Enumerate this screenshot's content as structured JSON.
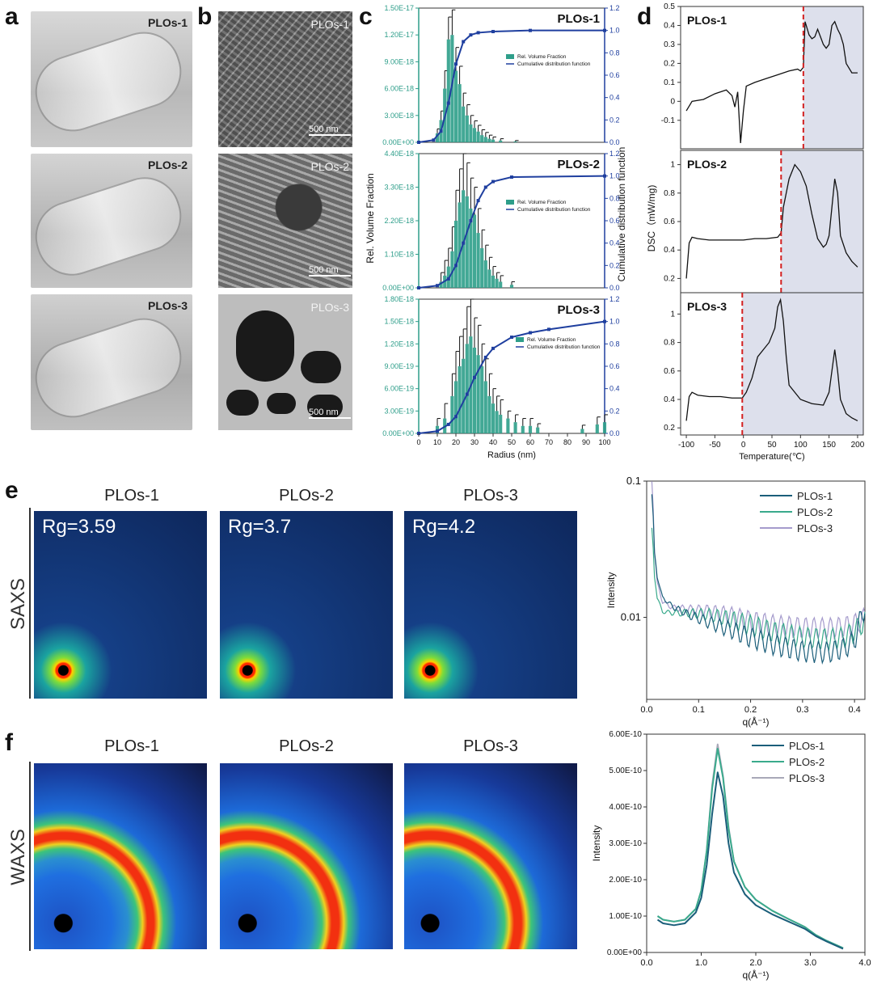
{
  "panel_labels": {
    "a": "a",
    "b": "b",
    "c": "c",
    "d": "d",
    "e": "e",
    "f": "f"
  },
  "panel_a": {
    "tags": [
      "PLOs-1",
      "PLOs-2",
      "PLOs-3"
    ]
  },
  "panel_b": {
    "tags": [
      "PLOs-1",
      "PLOs-2",
      "PLOs-3"
    ],
    "scale_bar": "500 nm"
  },
  "panel_e": {
    "titles": [
      "PLOs-1",
      "PLOs-2",
      "PLOs-3"
    ],
    "row_label": "SAXS",
    "rg": [
      "Rg=3.59",
      "Rg=3.7",
      "Rg=4.2"
    ]
  },
  "panel_f": {
    "titles": [
      "PLOs-1",
      "PLOs-2",
      "PLOs-3"
    ],
    "row_label": "WAXS"
  },
  "colors": {
    "teal": "#2e9e8a",
    "blue": "#1f3f9f",
    "red": "#d32020",
    "plos1": "#1b5e7a",
    "plos2": "#3aaa8c",
    "plos3": "#a59bcc",
    "shade": "#dde0ec"
  },
  "chart_data": [
    {
      "id": "c",
      "type": "bar",
      "xlabel": "Radius (nm)",
      "ylabel": "Rel. Volume Fraction",
      "ylabel_right": "Cumulative distribution function",
      "legend": [
        "Rel. Volume Fraction",
        "Cumulative distribution function"
      ],
      "xlim": [
        0,
        100
      ],
      "xticks": [
        "0",
        "10",
        "20",
        "30",
        "40",
        "50",
        "60",
        "70",
        "80",
        "90",
        "100"
      ],
      "right_ticks": [
        "0.0",
        "0.2",
        "0.4",
        "0.6",
        "0.8",
        "1.0",
        "1.2"
      ],
      "subplots": [
        {
          "title": "PLOs-1",
          "ylim": [
            0,
            1.5e-17
          ],
          "yticks": [
            "0.00E+00",
            "3.00E-18",
            "6.00E-18",
            "9.00E-18",
            "1.20E-17",
            "1.50E-17"
          ],
          "x": [
            10,
            12,
            14,
            16,
            18,
            20,
            22,
            24,
            26,
            28,
            30,
            32,
            34,
            36,
            38,
            40,
            44,
            52
          ],
          "values": [
            1e-18,
            2.5e-18,
            6e-18,
            1.15e-17,
            1.2e-17,
            8e-18,
            6.5e-18,
            4e-18,
            3e-18,
            2e-18,
            1.6e-18,
            1.2e-18,
            8e-19,
            6e-19,
            4e-19,
            3e-19,
            2e-19,
            1e-19
          ],
          "errors": [
            5e-19,
            1e-18,
            2e-18,
            2.5e-18,
            2.8e-18,
            2.6e-18,
            2e-18,
            1.5e-18,
            1.2e-18,
            1e-18,
            8e-19,
            7e-19,
            6e-19,
            5e-19,
            4e-19,
            3e-19,
            2e-19,
            1e-19
          ],
          "cdf_x": [
            0,
            8,
            12,
            16,
            20,
            24,
            28,
            32,
            40,
            60,
            100
          ],
          "cdf": [
            0,
            0.02,
            0.1,
            0.35,
            0.7,
            0.9,
            0.96,
            0.98,
            0.99,
            1.0,
            1.0
          ]
        },
        {
          "title": "PLOs-2",
          "ylim": [
            0,
            4.4e-18
          ],
          "yticks": [
            "0.00E+00",
            "1.10E-18",
            "2.20E-18",
            "3.30E-18",
            "4.40E-18"
          ],
          "x": [
            12,
            14,
            16,
            18,
            20,
            22,
            24,
            26,
            28,
            30,
            32,
            34,
            36,
            38,
            40,
            42,
            44,
            50
          ],
          "values": [
            2e-19,
            4e-19,
            7e-19,
            1.2e-18,
            2.2e-18,
            2.8e-18,
            3.2e-18,
            3e-18,
            2.6e-18,
            2.4e-18,
            1.8e-18,
            1.3e-18,
            9e-19,
            6e-19,
            4e-19,
            3e-19,
            2e-19,
            1e-19
          ],
          "errors": [
            3e-19,
            5e-19,
            6e-19,
            8e-19,
            1e-18,
            1.1e-18,
            1.2e-18,
            1.1e-18,
            1e-18,
            9e-19,
            8e-19,
            6e-19,
            5e-19,
            4e-19,
            3e-19,
            2e-19,
            2e-19,
            1e-19
          ],
          "cdf_x": [
            0,
            10,
            16,
            20,
            24,
            28,
            32,
            36,
            40,
            50,
            100
          ],
          "cdf": [
            0,
            0.02,
            0.08,
            0.2,
            0.4,
            0.6,
            0.78,
            0.9,
            0.95,
            0.99,
            1.0
          ]
        },
        {
          "title": "PLOs-3",
          "ylim": [
            0,
            1.8e-18
          ],
          "yticks": [
            "0.00E+00",
            "3.00E-19",
            "6.00E-19",
            "9.00E-19",
            "1.20E-18",
            "1.50E-18",
            "1.80E-18"
          ],
          "x": [
            10,
            14,
            18,
            20,
            22,
            24,
            26,
            28,
            30,
            32,
            34,
            36,
            38,
            40,
            42,
            44,
            48,
            52,
            56,
            60,
            64,
            88,
            96,
            100
          ],
          "values": [
            1e-19,
            2e-19,
            5e-19,
            7e-19,
            9e-19,
            1e-18,
            1.2e-18,
            1.3e-18,
            1.15e-18,
            1.05e-18,
            9e-19,
            7e-19,
            5e-19,
            4e-19,
            3e-19,
            2.5e-19,
            2e-19,
            1.5e-19,
            1e-19,
            1e-19,
            8e-20,
            6e-20,
            1.2e-19,
            1.5e-19
          ],
          "errors": [
            1e-19,
            2e-19,
            3e-19,
            4e-19,
            4e-19,
            4e-19,
            5e-19,
            5e-19,
            4e-19,
            4e-19,
            3e-19,
            3e-19,
            3e-19,
            2e-19,
            2e-19,
            2e-19,
            1e-19,
            1e-19,
            1e-19,
            1e-19,
            5e-20,
            5e-20,
            1e-19,
            1e-19
          ],
          "cdf_x": [
            0,
            10,
            16,
            20,
            26,
            30,
            36,
            40,
            50,
            60,
            70,
            100
          ],
          "cdf": [
            0,
            0.02,
            0.08,
            0.15,
            0.35,
            0.5,
            0.68,
            0.76,
            0.86,
            0.9,
            0.93,
            1.0
          ]
        }
      ]
    },
    {
      "id": "d",
      "type": "line",
      "xlabel": "Temperature(℃)",
      "ylabel": "DSC（mW/mg)",
      "xlim": [
        -110,
        210
      ],
      "xticks": [
        "-100",
        "-50",
        "0",
        "50",
        "100",
        "150",
        "200"
      ],
      "subplots": [
        {
          "title": "PLOs-1",
          "ylim": [
            -0.25,
            0.5
          ],
          "yticks": [
            "-0.1",
            "0",
            "0.1",
            "0.2",
            "0.3",
            "0.4",
            "0.5"
          ],
          "glass": 105,
          "x": [
            -100,
            -90,
            -70,
            -50,
            -30,
            -20,
            -15,
            -10,
            -5,
            0,
            5,
            20,
            40,
            60,
            80,
            95,
            100,
            105,
            108,
            110,
            115,
            120,
            125,
            130,
            140,
            145,
            150,
            155,
            160,
            165,
            170,
            175,
            180,
            190,
            200
          ],
          "y": [
            -0.05,
            0.0,
            0.01,
            0.04,
            0.06,
            0.03,
            -0.03,
            0.05,
            -0.22,
            -0.05,
            0.08,
            0.1,
            0.12,
            0.14,
            0.16,
            0.17,
            0.16,
            0.18,
            0.42,
            0.4,
            0.35,
            0.33,
            0.34,
            0.38,
            0.3,
            0.28,
            0.3,
            0.4,
            0.42,
            0.38,
            0.35,
            0.3,
            0.2,
            0.15,
            0.15
          ]
        },
        {
          "title": "PLOs-2",
          "ylim": [
            0.1,
            1.1
          ],
          "yticks": [
            "0.2",
            "0.4",
            "0.6",
            "0.8",
            "1"
          ],
          "glass": 66,
          "x": [
            -100,
            -95,
            -90,
            -80,
            -60,
            -40,
            -20,
            0,
            20,
            40,
            60,
            66,
            70,
            80,
            90,
            100,
            110,
            120,
            130,
            140,
            145,
            150,
            155,
            160,
            165,
            170,
            180,
            190,
            200
          ],
          "y": [
            0.2,
            0.45,
            0.49,
            0.48,
            0.47,
            0.47,
            0.47,
            0.47,
            0.48,
            0.48,
            0.49,
            0.52,
            0.7,
            0.9,
            1.0,
            0.95,
            0.85,
            0.65,
            0.48,
            0.42,
            0.44,
            0.5,
            0.7,
            0.9,
            0.8,
            0.5,
            0.38,
            0.32,
            0.28
          ]
        },
        {
          "title": "PLOs-3",
          "ylim": [
            0.15,
            1.15
          ],
          "yticks": [
            "0.2",
            "0.4",
            "0.6",
            "0.8",
            "1"
          ],
          "glass": -2,
          "x": [
            -100,
            -95,
            -90,
            -80,
            -60,
            -40,
            -20,
            -2,
            5,
            15,
            25,
            35,
            45,
            55,
            60,
            65,
            70,
            75,
            80,
            100,
            120,
            140,
            150,
            155,
            160,
            165,
            170,
            180,
            190,
            200
          ],
          "y": [
            0.25,
            0.42,
            0.45,
            0.43,
            0.42,
            0.42,
            0.41,
            0.41,
            0.45,
            0.55,
            0.7,
            0.75,
            0.8,
            0.9,
            1.05,
            1.1,
            0.95,
            0.7,
            0.5,
            0.4,
            0.37,
            0.36,
            0.45,
            0.6,
            0.75,
            0.6,
            0.4,
            0.3,
            0.27,
            0.25
          ]
        }
      ]
    },
    {
      "id": "e",
      "type": "line",
      "xlabel": "q(Å⁻¹)",
      "ylabel": "Intensity",
      "yscale": "log",
      "xlim": [
        0,
        0.42
      ],
      "ylim": [
        0.0025,
        0.1
      ],
      "xticks": [
        "0.0",
        "0.1",
        "0.2",
        "0.3",
        "0.4"
      ],
      "yticks": [
        "0.01",
        "0.1"
      ],
      "series": [
        {
          "name": "PLOs-1",
          "x": [
            0.01,
            0.015,
            0.02,
            0.03,
            0.05,
            0.08,
            0.12,
            0.16,
            0.2,
            0.25,
            0.3,
            0.35,
            0.38,
            0.4,
            0.42
          ],
          "y": [
            0.08,
            0.03,
            0.02,
            0.014,
            0.012,
            0.0105,
            0.0092,
            0.0082,
            0.0072,
            0.0063,
            0.0057,
            0.0056,
            0.006,
            0.0068,
            0.012
          ]
        },
        {
          "name": "PLOs-2",
          "x": [
            0.01,
            0.015,
            0.02,
            0.03,
            0.05,
            0.08,
            0.12,
            0.16,
            0.2,
            0.25,
            0.3,
            0.35,
            0.38,
            0.4,
            0.42
          ],
          "y": [
            0.045,
            0.02,
            0.014,
            0.011,
            0.0108,
            0.0108,
            0.0105,
            0.0098,
            0.0088,
            0.0078,
            0.0072,
            0.007,
            0.0072,
            0.008,
            0.0095
          ]
        },
        {
          "name": "PLOs-3",
          "x": [
            0.01,
            0.015,
            0.02,
            0.03,
            0.05,
            0.08,
            0.12,
            0.16,
            0.2,
            0.25,
            0.3,
            0.35,
            0.38,
            0.4,
            0.42
          ],
          "y": [
            0.1,
            0.03,
            0.018,
            0.013,
            0.0118,
            0.0115,
            0.0112,
            0.0105,
            0.0095,
            0.0088,
            0.0085,
            0.0084,
            0.0086,
            0.009,
            0.01
          ]
        }
      ]
    },
    {
      "id": "f",
      "type": "line",
      "xlabel": "q(Å⁻¹)",
      "ylabel": "Intensity",
      "xlim": [
        0,
        4.0
      ],
      "ylim": [
        0,
        6e-10
      ],
      "xticks": [
        "0.0",
        "1.0",
        "2.0",
        "3.0",
        "4.0"
      ],
      "yticks": [
        "0.00E+00",
        "1.00E-10",
        "2.00E-10",
        "3.00E-10",
        "4.00E-10",
        "5.00E-10",
        "6.00E-10"
      ],
      "series": [
        {
          "name": "PLOs-1",
          "x": [
            0.2,
            0.3,
            0.5,
            0.7,
            0.9,
            1.0,
            1.1,
            1.2,
            1.3,
            1.4,
            1.5,
            1.6,
            1.8,
            2.0,
            2.3,
            2.6,
            2.9,
            3.1,
            3.3,
            3.6
          ],
          "y": [
            9e-11,
            8e-11,
            7.5e-11,
            8e-11,
            1.1e-10,
            1.5e-10,
            2.4e-10,
            3.8e-10,
            4.95e-10,
            4.3e-10,
            3e-10,
            2.2e-10,
            1.6e-10,
            1.3e-10,
            1.05e-10,
            8.5e-11,
            6.5e-11,
            4.5e-11,
            3e-11,
            1e-11
          ]
        },
        {
          "name": "PLOs-2",
          "x": [
            0.2,
            0.3,
            0.5,
            0.7,
            0.9,
            1.0,
            1.1,
            1.2,
            1.3,
            1.4,
            1.5,
            1.6,
            1.8,
            2.0,
            2.3,
            2.6,
            2.9,
            3.1,
            3.3,
            3.6
          ],
          "y": [
            1e-10,
            9e-11,
            8.5e-11,
            9e-11,
            1.2e-10,
            1.7e-10,
            2.8e-10,
            4.5e-10,
            5.6e-10,
            4.8e-10,
            3.4e-10,
            2.5e-10,
            1.8e-10,
            1.45e-10,
            1.15e-10,
            9.2e-11,
            7e-11,
            4.8e-11,
            3.2e-11,
            1.2e-11
          ]
        },
        {
          "name": "PLOs-3",
          "x": [
            0.2,
            0.3,
            0.5,
            0.7,
            0.9,
            1.0,
            1.1,
            1.2,
            1.3,
            1.4,
            1.5,
            1.6,
            1.8,
            2.0,
            2.3,
            2.6,
            2.9,
            3.1,
            3.3,
            3.6
          ],
          "y": [
            1e-10,
            9e-11,
            8.5e-11,
            9e-11,
            1.2e-10,
            1.7e-10,
            2.8e-10,
            4.6e-10,
            5.72e-10,
            4.85e-10,
            3.45e-10,
            2.5e-10,
            1.8e-10,
            1.45e-10,
            1.15e-10,
            9.2e-11,
            7e-11,
            4.8e-11,
            3.2e-11,
            1.2e-11
          ]
        }
      ]
    }
  ]
}
